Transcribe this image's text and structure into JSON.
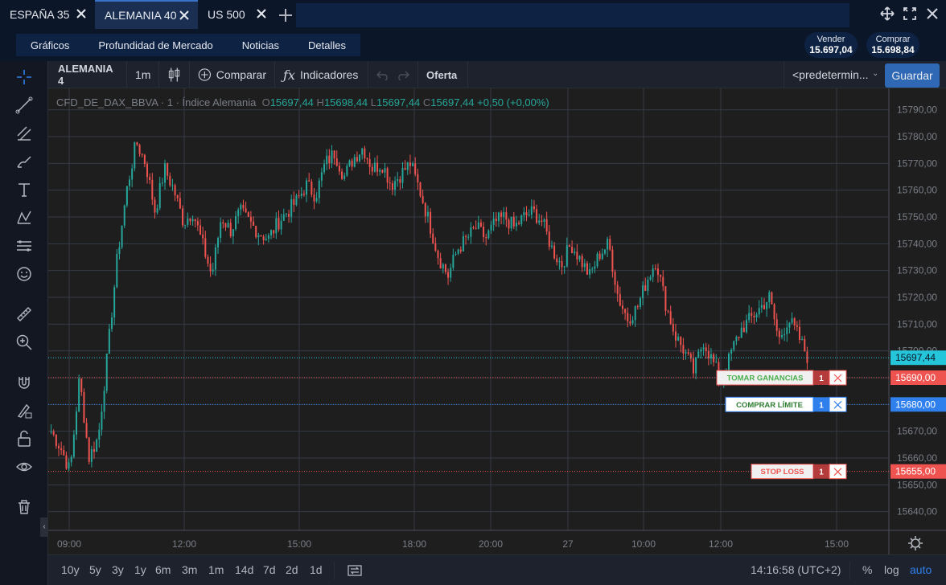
{
  "tabs": [
    {
      "label": "ESPAÑA 35"
    },
    {
      "label": "ALEMANIA 40"
    },
    {
      "label": "US 500"
    }
  ],
  "subnav": {
    "items": [
      "Gráficos",
      "Profundidad de Mercado",
      "Noticias",
      "Detalles"
    ],
    "sell": {
      "label": "Vender",
      "value": "15.697,04"
    },
    "buy": {
      "label": "Comprar",
      "value": "15.698,84"
    }
  },
  "chart_toolbar": {
    "symbol": "ALEMANIA 4",
    "interval": "1m",
    "compare": "Comparar",
    "indicators": "Indicadores",
    "price_type": "Oferta",
    "template": "<predetermin...",
    "save": "Guardar"
  },
  "legend": {
    "name": "CFD_DE_DAX_BBVA · 1 · Índice Alemania",
    "o_label": "O",
    "o": "15697,44",
    "h_label": "H",
    "h": "15698,44",
    "l_label": "L",
    "l": "15697,44",
    "c_label": "C",
    "c": "15697,44",
    "change": "+0,50 (+0,00%)"
  },
  "orders": [
    {
      "label": "TOMAR GANANCIAS",
      "qty": "1",
      "price": "15690,00",
      "color": "#ef5350",
      "text_color": "#4caf50"
    },
    {
      "label": "COMPRAR LÍMITE",
      "qty": "1",
      "price": "15680,00",
      "color": "#2f80ed",
      "text_color": "#2e7d32"
    },
    {
      "label": "STOP LOSS",
      "qty": "1",
      "price": "15655,00",
      "color": "#ef5350",
      "text_color": "#ef5350"
    }
  ],
  "current_price": "15697,44",
  "bottom": {
    "ranges": [
      "10y",
      "5y",
      "3y",
      "1y",
      "6m",
      "3m",
      "1m",
      "14d",
      "7d",
      "2d",
      "1d"
    ],
    "time": "14:16:58 (UTC+2)",
    "percent": "%",
    "log": "log",
    "auto": "auto"
  },
  "chart_data": {
    "type": "candlestick",
    "y_ticks": [
      15640,
      15650,
      15660,
      15670,
      15680,
      15690,
      15700,
      15710,
      15720,
      15730,
      15740,
      15750,
      15760,
      15770,
      15780,
      15790
    ],
    "y_tick_labels": [
      "15640,00",
      "15650,00",
      "15660,00",
      "15670,00",
      "15680,00",
      "15690,00",
      "15700,00",
      "15710,00",
      "15720,00",
      "15730,00",
      "15740,00",
      "15750,00",
      "15760,00",
      "15770,00",
      "15780,00",
      "15790,00"
    ],
    "ylim": [
      15633,
      15798
    ],
    "x_tick_labels": [
      "09:00",
      "12:00",
      "15:00",
      "18:00",
      "20:00",
      "27",
      "10:00",
      "12:00",
      "15:00"
    ],
    "series": [
      {
        "name": "",
        "values": [
          15670,
          15664,
          15655,
          15690,
          15660,
          15668,
          15700,
          15735,
          15760,
          15778,
          15770,
          15752,
          15768,
          15760,
          15748,
          15752,
          15740,
          15728,
          15750,
          15745,
          15752,
          15748,
          15744,
          15742,
          15748,
          15752,
          15756,
          15762,
          15758,
          15770,
          15774,
          15765,
          15772,
          15776,
          15768,
          15770,
          15762,
          15766,
          15770,
          15760,
          15748,
          15735,
          15728,
          15738,
          15742,
          15746,
          15742,
          15748,
          15750,
          15746,
          15750,
          15752,
          15748,
          15738,
          15732,
          15740,
          15734,
          15728,
          15736,
          15740,
          15720,
          15712,
          15716,
          15726,
          15734,
          15718,
          15706,
          15700,
          15692,
          15704,
          15696,
          15688,
          15700,
          15708,
          15712,
          15716,
          15720,
          15704,
          15712,
          15706,
          15698
        ]
      }
    ]
  },
  "icons": {
    "tools": [
      "crosshair-icon",
      "trend-line-icon",
      "fib-icon",
      "brush-icon",
      "text-icon",
      "pattern-icon",
      "prediction-icon",
      "emoji-icon",
      "ruler-icon",
      "zoom-in-icon",
      "magnet-icon",
      "lock-drawing-icon",
      "unlock-icon",
      "eye-icon",
      "trash-icon"
    ]
  }
}
